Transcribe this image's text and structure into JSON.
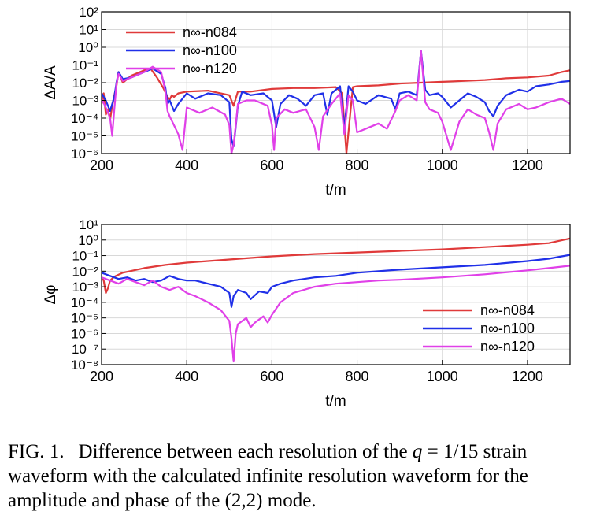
{
  "figure": {
    "label": "FIG. 1.",
    "caption_parts": [
      "Difference between each resolution of the ",
      "q",
      " = 1/15 strain waveform with the calculated infinite resolution waveform for the amplitude and phase of the (2,2) mode."
    ]
  },
  "colors": {
    "n084": "#e03a3a",
    "n100": "#2030e8",
    "n120": "#e040e8"
  },
  "chart_data": [
    {
      "type": "line",
      "ylabel": "ΔA/A",
      "xlabel": "t/m",
      "y_scale": "log",
      "xlim": [
        200,
        1300
      ],
      "ylim_exp": [
        -6,
        2
      ],
      "x_ticks": [
        200,
        400,
        600,
        800,
        1000,
        1200
      ],
      "y_tick_exp": [
        -6,
        -5,
        -4,
        -3,
        -2,
        -1,
        0,
        1,
        2
      ],
      "grid": true,
      "legend_position": "top-left",
      "series": [
        {
          "name": "n∞-n084",
          "color": "#e03a3a",
          "x": [
            200,
            205,
            210,
            215,
            220,
            225,
            230,
            235,
            240,
            250,
            270,
            300,
            315,
            330,
            345,
            355,
            360,
            365,
            370,
            380,
            400,
            450,
            500,
            510,
            520,
            550,
            600,
            650,
            700,
            750,
            765,
            775,
            790,
            800,
            850,
            900,
            950,
            1000,
            1050,
            1100,
            1150,
            1200,
            1250,
            1280,
            1300
          ],
          "log_y": [
            -3.2,
            -2.6,
            -3.8,
            -3.5,
            -4.1,
            -3.3,
            -2.7,
            -2.2,
            -1.4,
            -2.0,
            -1.6,
            -1.3,
            -1.2,
            -1.7,
            -2.3,
            -2.8,
            -2.95,
            -2.7,
            -2.8,
            -2.6,
            -2.5,
            -2.45,
            -2.7,
            -3.3,
            -2.5,
            -2.5,
            -2.35,
            -2.3,
            -2.3,
            -2.25,
            -2.6,
            -6.0,
            -2.25,
            -2.2,
            -2.15,
            -2.05,
            -2.0,
            -1.95,
            -1.9,
            -1.85,
            -1.75,
            -1.7,
            -1.6,
            -1.4,
            -1.3
          ]
        },
        {
          "name": "n∞-n100",
          "color": "#2030e8",
          "x": [
            200,
            210,
            220,
            230,
            235,
            240,
            250,
            270,
            300,
            320,
            340,
            350,
            355,
            360,
            370,
            380,
            400,
            420,
            450,
            480,
            500,
            505,
            510,
            515,
            520,
            530,
            550,
            580,
            600,
            610,
            620,
            640,
            660,
            680,
            700,
            720,
            730,
            740,
            760,
            770,
            780,
            790,
            800,
            820,
            850,
            880,
            890,
            900,
            920,
            940,
            950,
            960,
            970,
            990,
            1000,
            1020,
            1040,
            1060,
            1080,
            1100,
            1110,
            1120,
            1130,
            1150,
            1180,
            1200,
            1220,
            1250,
            1280,
            1300
          ],
          "log_y": [
            -2.6,
            -3.0,
            -3.6,
            -2.8,
            -2.0,
            -1.4,
            -1.8,
            -1.7,
            -1.4,
            -1.2,
            -1.5,
            -2.3,
            -3.2,
            -3.0,
            -3.6,
            -3.2,
            -2.6,
            -2.9,
            -2.6,
            -2.7,
            -3.1,
            -5.2,
            -5.6,
            -4.5,
            -3.3,
            -2.5,
            -2.7,
            -2.6,
            -3.0,
            -4.5,
            -3.2,
            -2.7,
            -2.9,
            -3.3,
            -2.7,
            -2.6,
            -3.8,
            -2.6,
            -2.2,
            -4.6,
            -2.2,
            -2.5,
            -3.0,
            -3.2,
            -2.7,
            -2.9,
            -3.5,
            -2.6,
            -2.5,
            -2.7,
            -0.2,
            -2.4,
            -2.7,
            -2.6,
            -2.8,
            -3.4,
            -3.0,
            -2.6,
            -2.8,
            -3.1,
            -3.6,
            -3.9,
            -3.3,
            -2.7,
            -2.4,
            -2.5,
            -2.2,
            -2.1,
            -1.95,
            -1.9
          ]
        },
        {
          "name": "n∞-n120",
          "color": "#e040e8",
          "x": [
            200,
            210,
            220,
            225,
            230,
            235,
            240,
            250,
            270,
            300,
            320,
            340,
            350,
            355,
            360,
            370,
            380,
            390,
            400,
            430,
            460,
            490,
            500,
            505,
            510,
            515,
            520,
            540,
            560,
            590,
            600,
            605,
            610,
            630,
            650,
            680,
            700,
            710,
            720,
            740,
            760,
            770,
            780,
            790,
            800,
            830,
            850,
            870,
            890,
            900,
            920,
            940,
            950,
            960,
            970,
            990,
            1000,
            1020,
            1040,
            1060,
            1080,
            1100,
            1110,
            1120,
            1130,
            1150,
            1180,
            1200,
            1220,
            1250,
            1280,
            1300
          ],
          "log_y": [
            -2.9,
            -3.4,
            -4.0,
            -5.0,
            -3.5,
            -2.1,
            -1.5,
            -1.9,
            -1.7,
            -1.4,
            -1.1,
            -1.4,
            -2.5,
            -3.6,
            -3.9,
            -4.4,
            -4.9,
            -5.8,
            -3.4,
            -3.7,
            -3.4,
            -3.8,
            -4.4,
            -6.0,
            -5.5,
            -4.4,
            -3.2,
            -3.0,
            -3.0,
            -3.3,
            -4.4,
            -5.8,
            -4.0,
            -3.5,
            -3.7,
            -3.5,
            -4.5,
            -5.8,
            -3.9,
            -3.2,
            -2.6,
            -4.9,
            -2.7,
            -3.0,
            -4.8,
            -4.5,
            -4.3,
            -4.6,
            -3.6,
            -3.0,
            -2.7,
            -3.0,
            -0.2,
            -3.1,
            -3.5,
            -3.7,
            -4.2,
            -5.8,
            -4.2,
            -3.5,
            -3.8,
            -4.0,
            -4.8,
            -5.8,
            -4.3,
            -3.5,
            -3.2,
            -3.5,
            -3.4,
            -3.1,
            -2.9,
            -3.2
          ]
        }
      ]
    },
    {
      "type": "line",
      "ylabel": "Δφ",
      "xlabel": "t/m",
      "y_scale": "log",
      "xlim": [
        200,
        1300
      ],
      "ylim_exp": [
        -8,
        1
      ],
      "x_ticks": [
        200,
        400,
        600,
        800,
        1000,
        1200
      ],
      "y_tick_exp": [
        -8,
        -7,
        -6,
        -5,
        -4,
        -3,
        -2,
        -1,
        0,
        1
      ],
      "grid": true,
      "legend_position": "bottom-right",
      "series": [
        {
          "name": "n∞-n084",
          "color": "#e03a3a",
          "x": [
            200,
            205,
            210,
            215,
            220,
            230,
            250,
            300,
            350,
            400,
            500,
            600,
            700,
            800,
            900,
            1000,
            1100,
            1200,
            1250,
            1300
          ],
          "log_y": [
            -2.4,
            -2.6,
            -3.4,
            -3.1,
            -2.6,
            -2.35,
            -2.1,
            -1.8,
            -1.6,
            -1.45,
            -1.25,
            -1.05,
            -0.9,
            -0.8,
            -0.7,
            -0.6,
            -0.45,
            -0.3,
            -0.2,
            0.1
          ]
        },
        {
          "name": "n∞-n100",
          "color": "#2030e8",
          "x": [
            200,
            220,
            240,
            260,
            280,
            300,
            320,
            340,
            360,
            380,
            400,
            420,
            450,
            480,
            500,
            505,
            510,
            520,
            540,
            550,
            570,
            590,
            600,
            620,
            650,
            700,
            750,
            800,
            900,
            1000,
            1100,
            1200,
            1250,
            1300
          ],
          "log_y": [
            -2.1,
            -2.3,
            -2.5,
            -2.4,
            -2.6,
            -2.5,
            -2.7,
            -2.6,
            -2.3,
            -2.5,
            -2.6,
            -2.6,
            -2.8,
            -3.0,
            -3.4,
            -4.3,
            -3.6,
            -3.2,
            -3.4,
            -3.8,
            -3.3,
            -3.4,
            -3.0,
            -2.8,
            -2.6,
            -2.4,
            -2.3,
            -2.1,
            -1.9,
            -1.75,
            -1.6,
            -1.35,
            -1.2,
            -0.95
          ]
        },
        {
          "name": "n∞-n120",
          "color": "#e040e8",
          "x": [
            200,
            220,
            240,
            260,
            280,
            300,
            320,
            340,
            360,
            380,
            400,
            420,
            450,
            480,
            500,
            505,
            510,
            515,
            520,
            540,
            550,
            560,
            580,
            590,
            600,
            620,
            650,
            700,
            750,
            800,
            850,
            900,
            1000,
            1100,
            1200,
            1250,
            1300
          ],
          "log_y": [
            -2.4,
            -2.6,
            -2.8,
            -2.5,
            -2.7,
            -2.9,
            -2.6,
            -3.0,
            -3.2,
            -3.0,
            -3.4,
            -3.6,
            -4.0,
            -4.5,
            -5.2,
            -6.3,
            -7.8,
            -6.0,
            -5.4,
            -5.0,
            -5.6,
            -5.3,
            -4.9,
            -5.3,
            -4.8,
            -4.0,
            -3.4,
            -3.0,
            -2.8,
            -2.7,
            -2.6,
            -2.55,
            -2.4,
            -2.2,
            -1.95,
            -1.8,
            -1.65
          ]
        }
      ]
    }
  ]
}
